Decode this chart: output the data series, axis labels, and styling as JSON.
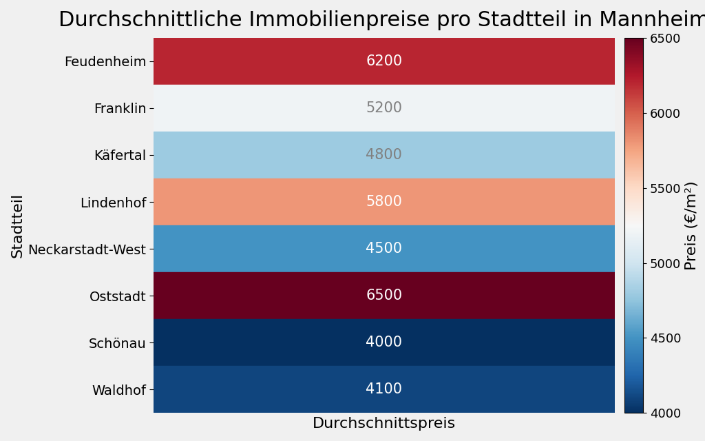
{
  "title": "Durchschnittliche Immobilienpreise pro Stadtteil in Mannheim",
  "xlabel": "Durchschnittspreis",
  "ylabel": "Stadtteil",
  "colorbar_label": "Preis (€/m²)",
  "districts": [
    "Feudenheim",
    "Franklin",
    "Käfertal",
    "Lindenhof",
    "Neckarstadt-West",
    "Oststadt",
    "Schönau",
    "Waldhof"
  ],
  "values": [
    6200,
    5200,
    4800,
    5800,
    4500,
    6500,
    4000,
    4100
  ],
  "vmin": 4000,
  "vmax": 6500,
  "colormap": "RdBu_r",
  "title_fontsize": 22,
  "label_fontsize": 16,
  "tick_fontsize": 14,
  "annot_fontsize": 15,
  "colorbar_tick_fontsize": 13,
  "background_color": "#f0f0f0",
  "text_colors": [
    "white",
    "gray",
    "gray",
    "white",
    "white",
    "white",
    "white",
    "white"
  ]
}
